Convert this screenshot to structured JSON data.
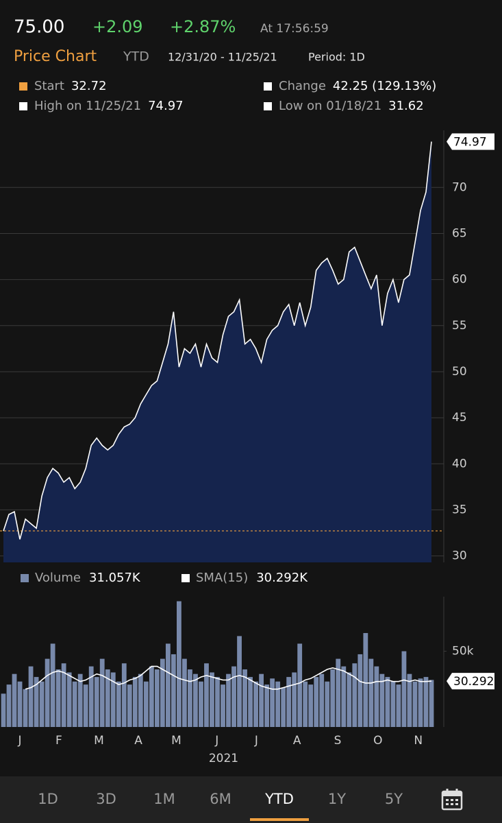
{
  "header": {
    "price": "75.00",
    "change": "+2.09",
    "change_pct": "+2.87%",
    "time": "At 17:56:59",
    "title": "Price Chart",
    "range": "YTD",
    "dates": "12/31/20 - 11/25/21",
    "period": "Period: 1D",
    "stats": [
      {
        "label": "Start",
        "value": "32.72",
        "color": "#f0a040"
      },
      {
        "label": "Change",
        "value": "42.25 (129.13%)",
        "color": "#ffffff"
      },
      {
        "label": "High on 11/25/21",
        "value": "74.97",
        "color": "#ffffff"
      },
      {
        "label": "Low on 01/18/21",
        "value": "31.62",
        "color": "#ffffff"
      }
    ]
  },
  "chart_data": [
    {
      "type": "area",
      "color": "#ffffff",
      "fill": "#15244d",
      "values": [
        32.7,
        34.5,
        34.8,
        31.8,
        34,
        33.5,
        33,
        36.5,
        38.5,
        39.5,
        39,
        38,
        38.5,
        37.3,
        38,
        39.5,
        42,
        42.8,
        42,
        41.5,
        42,
        43.2,
        44,
        44.3,
        45,
        46.5,
        47.5,
        48.5,
        49,
        51,
        53,
        56.5,
        50.5,
        52.5,
        52,
        53,
        50.5,
        53,
        51.5,
        51,
        54,
        56,
        56.5,
        57.8,
        53,
        53.5,
        52.5,
        51,
        53.5,
        54.5,
        55,
        56.5,
        57.3,
        55,
        57.5,
        55,
        57,
        61,
        61.8,
        62.3,
        61,
        59.5,
        60,
        63,
        63.5,
        62,
        60.5,
        59,
        60.5,
        55,
        58.5,
        60,
        57.5,
        60,
        60.5,
        64,
        67.5,
        69.5,
        74.97
      ],
      "xlim": [
        0,
        78
      ],
      "ylim": [
        29.3,
        76.2
      ],
      "yticks": [
        30,
        35,
        40,
        45,
        50,
        55,
        60,
        65,
        70
      ],
      "start_line": 32.72,
      "grid": true
    },
    {
      "type": "bar",
      "series": [
        {
          "name": "Volume",
          "color": "#7889ab",
          "legend_value": "31.057K",
          "values": [
            22,
            28,
            35,
            30,
            25,
            40,
            33,
            30,
            45,
            55,
            38,
            42,
            36,
            30,
            35,
            28,
            40,
            33,
            45,
            38,
            36,
            30,
            42,
            28,
            33,
            35,
            30,
            40,
            38,
            45,
            55,
            48,
            83,
            45,
            38,
            35,
            30,
            42,
            36,
            33,
            28,
            35,
            40,
            60,
            38,
            33,
            30,
            35,
            28,
            32,
            30,
            26,
            33,
            36,
            55,
            30,
            28,
            33,
            35,
            30,
            38,
            45,
            40,
            36,
            42,
            48,
            62,
            45,
            40,
            35,
            33,
            30,
            28,
            50,
            35,
            30,
            32,
            33,
            31.057
          ]
        },
        {
          "name": "SMA(15)",
          "color": "#ffffff",
          "type": "line",
          "legend_value": "30.292K",
          "values": [
            null,
            null,
            null,
            null,
            25,
            26,
            28,
            31,
            34,
            36,
            37,
            36,
            34,
            32,
            30,
            31,
            33,
            35,
            34,
            32,
            30,
            28,
            29,
            31,
            32,
            34,
            37,
            40,
            40,
            38,
            36,
            34,
            32,
            31,
            30,
            31,
            33,
            34,
            33,
            32,
            31,
            31,
            33,
            34,
            33,
            31,
            29,
            27,
            26,
            25,
            25,
            26,
            27,
            28,
            29,
            31,
            32,
            34,
            36,
            38,
            39,
            38,
            37,
            35,
            33,
            30,
            29,
            29,
            30,
            30,
            31,
            30,
            30,
            31,
            30,
            31,
            30,
            30,
            30.292
          ]
        }
      ],
      "xlim": [
        0,
        78
      ],
      "ylim": [
        0,
        86
      ],
      "yticks": [
        {
          "value": 50,
          "label": "50k"
        }
      ],
      "xticks": [
        {
          "value": 3,
          "label": "J"
        },
        {
          "value": 10.1,
          "label": "F"
        },
        {
          "value": 17.4,
          "label": "M"
        },
        {
          "value": 24.6,
          "label": "A"
        },
        {
          "value": 31.5,
          "label": "M"
        },
        {
          "value": 38.9,
          "label": "J"
        },
        {
          "value": 46.1,
          "label": "J"
        },
        {
          "value": 53.5,
          "label": "A"
        },
        {
          "value": 60.9,
          "label": "S"
        },
        {
          "value": 68.25,
          "label": "O"
        },
        {
          "value": 75.6,
          "label": "N"
        }
      ],
      "xlabel": "2021"
    }
  ],
  "tabs": [
    "1D",
    "3D",
    "1M",
    "6M",
    "YTD",
    "1Y",
    "5Y"
  ],
  "selected_tab": 4
}
